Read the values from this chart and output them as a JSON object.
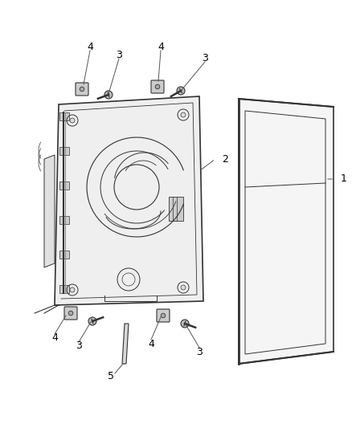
{
  "bg_color": "#ffffff",
  "lc": "#666666",
  "dc": "#333333",
  "fig_width": 4.38,
  "fig_height": 5.33,
  "dpi": 100
}
